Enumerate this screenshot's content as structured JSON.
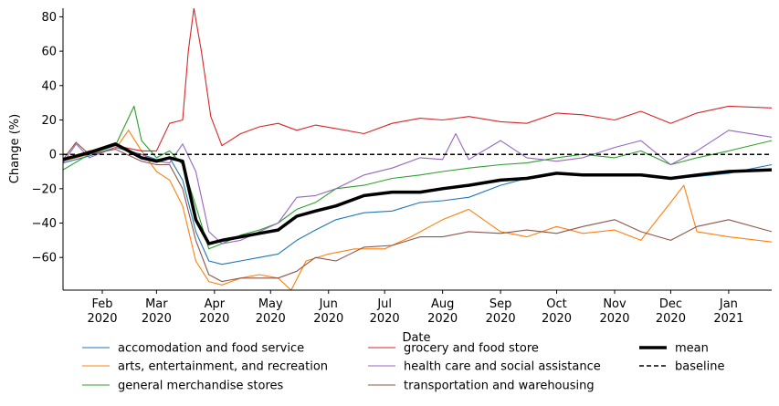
{
  "chart_data": {
    "type": "line",
    "xlabel": "Date",
    "ylabel": "Change (%)",
    "x_range": [
      "2020-01-11",
      "2021-01-24"
    ],
    "ylim": [
      -79,
      85
    ],
    "y_ticks": [
      -60,
      -40,
      -20,
      0,
      20,
      40,
      60,
      80
    ],
    "x_ticks": [
      {
        "date": "2020-02-01",
        "line1": "Feb",
        "line2": "2020"
      },
      {
        "date": "2020-03-01",
        "line1": "Mar",
        "line2": "2020"
      },
      {
        "date": "2020-04-01",
        "line1": "Apr",
        "line2": "2020"
      },
      {
        "date": "2020-05-01",
        "line1": "May",
        "line2": "2020"
      },
      {
        "date": "2020-06-01",
        "line1": "Jun",
        "line2": "2020"
      },
      {
        "date": "2020-07-01",
        "line1": "Jul",
        "line2": "2020"
      },
      {
        "date": "2020-08-01",
        "line1": "Aug",
        "line2": "2020"
      },
      {
        "date": "2020-09-01",
        "line1": "Sep",
        "line2": "2020"
      },
      {
        "date": "2020-10-01",
        "line1": "Oct",
        "line2": "2020"
      },
      {
        "date": "2020-11-01",
        "line1": "Nov",
        "line2": "2020"
      },
      {
        "date": "2020-12-01",
        "line1": "Dec",
        "line2": "2020"
      },
      {
        "date": "2021-01-01",
        "line1": "Jan",
        "line2": "2021"
      }
    ],
    "grid": false,
    "legend_placement": "bottom, outside plot",
    "series": [
      {
        "name": "accomodation and food service",
        "color": "#1f77b4",
        "style": "solid",
        "points": [
          [
            "2020-01-11",
            -5
          ],
          [
            "2020-01-25",
            -1
          ],
          [
            "2020-02-08",
            4
          ],
          [
            "2020-02-22",
            0
          ],
          [
            "2020-03-01",
            -3
          ],
          [
            "2020-03-08",
            -2
          ],
          [
            "2020-03-15",
            -15
          ],
          [
            "2020-03-22",
            -45
          ],
          [
            "2020-03-29",
            -62
          ],
          [
            "2020-04-05",
            -64
          ],
          [
            "2020-04-15",
            -62
          ],
          [
            "2020-04-25",
            -60
          ],
          [
            "2020-05-05",
            -58
          ],
          [
            "2020-05-15",
            -50
          ],
          [
            "2020-05-25",
            -44
          ],
          [
            "2020-06-05",
            -38
          ],
          [
            "2020-06-20",
            -34
          ],
          [
            "2020-07-05",
            -33
          ],
          [
            "2020-07-20",
            -28
          ],
          [
            "2020-08-01",
            -27
          ],
          [
            "2020-08-15",
            -25
          ],
          [
            "2020-09-01",
            -18
          ],
          [
            "2020-09-15",
            -14
          ],
          [
            "2020-10-01",
            -11
          ],
          [
            "2020-10-15",
            -12
          ],
          [
            "2020-11-01",
            -12
          ],
          [
            "2020-11-15",
            -12
          ],
          [
            "2020-12-01",
            -14
          ],
          [
            "2020-12-15",
            -13
          ],
          [
            "2021-01-01",
            -11
          ],
          [
            "2021-01-24",
            -6
          ]
        ]
      },
      {
        "name": "arts, entertainment, and recreation",
        "color": "#ff7f0e",
        "style": "solid",
        "points": [
          [
            "2020-01-11",
            -4
          ],
          [
            "2020-01-25",
            0
          ],
          [
            "2020-02-08",
            3
          ],
          [
            "2020-02-15",
            14
          ],
          [
            "2020-02-22",
            2
          ],
          [
            "2020-03-01",
            -10
          ],
          [
            "2020-03-08",
            -15
          ],
          [
            "2020-03-15",
            -30
          ],
          [
            "2020-03-22",
            -62
          ],
          [
            "2020-03-29",
            -74
          ],
          [
            "2020-04-05",
            -76
          ],
          [
            "2020-04-15",
            -72
          ],
          [
            "2020-04-25",
            -70
          ],
          [
            "2020-05-05",
            -72
          ],
          [
            "2020-05-12",
            -79
          ],
          [
            "2020-05-20",
            -62
          ],
          [
            "2020-06-01",
            -58
          ],
          [
            "2020-06-15",
            -55
          ],
          [
            "2020-07-01",
            -55
          ],
          [
            "2020-07-15",
            -48
          ],
          [
            "2020-08-01",
            -38
          ],
          [
            "2020-08-15",
            -32
          ],
          [
            "2020-09-01",
            -45
          ],
          [
            "2020-09-15",
            -48
          ],
          [
            "2020-10-01",
            -42
          ],
          [
            "2020-10-15",
            -46
          ],
          [
            "2020-11-01",
            -44
          ],
          [
            "2020-11-15",
            -50
          ],
          [
            "2020-12-01",
            -28
          ],
          [
            "2020-12-08",
            -18
          ],
          [
            "2020-12-15",
            -45
          ],
          [
            "2021-01-01",
            -48
          ],
          [
            "2021-01-24",
            -51
          ]
        ]
      },
      {
        "name": "general merchandise stores",
        "color": "#2ca02c",
        "style": "solid",
        "points": [
          [
            "2020-01-11",
            -9
          ],
          [
            "2020-01-25",
            0
          ],
          [
            "2020-02-08",
            5
          ],
          [
            "2020-02-18",
            28
          ],
          [
            "2020-02-22",
            8
          ],
          [
            "2020-03-01",
            -2
          ],
          [
            "2020-03-08",
            2
          ],
          [
            "2020-03-15",
            -6
          ],
          [
            "2020-03-22",
            -30
          ],
          [
            "2020-03-29",
            -55
          ],
          [
            "2020-04-05",
            -52
          ],
          [
            "2020-04-15",
            -47
          ],
          [
            "2020-04-25",
            -44
          ],
          [
            "2020-05-05",
            -40
          ],
          [
            "2020-05-15",
            -32
          ],
          [
            "2020-05-25",
            -28
          ],
          [
            "2020-06-05",
            -20
          ],
          [
            "2020-06-20",
            -18
          ],
          [
            "2020-07-05",
            -14
          ],
          [
            "2020-07-20",
            -12
          ],
          [
            "2020-08-01",
            -10
          ],
          [
            "2020-08-15",
            -8
          ],
          [
            "2020-09-01",
            -6
          ],
          [
            "2020-09-15",
            -5
          ],
          [
            "2020-10-01",
            -2
          ],
          [
            "2020-10-15",
            0
          ],
          [
            "2020-11-01",
            -2
          ],
          [
            "2020-11-15",
            2
          ],
          [
            "2020-12-01",
            -6
          ],
          [
            "2020-12-15",
            -2
          ],
          [
            "2021-01-01",
            2
          ],
          [
            "2021-01-24",
            8
          ]
        ]
      },
      {
        "name": "grocery and food store",
        "color": "#d62728",
        "style": "solid",
        "points": [
          [
            "2020-01-11",
            -3
          ],
          [
            "2020-01-25",
            2
          ],
          [
            "2020-02-08",
            5
          ],
          [
            "2020-02-22",
            2
          ],
          [
            "2020-03-01",
            2
          ],
          [
            "2020-03-08",
            18
          ],
          [
            "2020-03-15",
            20
          ],
          [
            "2020-03-18",
            60
          ],
          [
            "2020-03-21",
            85
          ],
          [
            "2020-03-25",
            60
          ],
          [
            "2020-03-30",
            22
          ],
          [
            "2020-04-05",
            5
          ],
          [
            "2020-04-15",
            12
          ],
          [
            "2020-04-25",
            16
          ],
          [
            "2020-05-05",
            18
          ],
          [
            "2020-05-15",
            14
          ],
          [
            "2020-05-25",
            17
          ],
          [
            "2020-06-05",
            15
          ],
          [
            "2020-06-20",
            12
          ],
          [
            "2020-07-05",
            18
          ],
          [
            "2020-07-20",
            21
          ],
          [
            "2020-08-01",
            20
          ],
          [
            "2020-08-15",
            22
          ],
          [
            "2020-09-01",
            19
          ],
          [
            "2020-09-15",
            18
          ],
          [
            "2020-10-01",
            24
          ],
          [
            "2020-10-15",
            23
          ],
          [
            "2020-11-01",
            20
          ],
          [
            "2020-11-15",
            25
          ],
          [
            "2020-12-01",
            18
          ],
          [
            "2020-12-15",
            24
          ],
          [
            "2021-01-01",
            28
          ],
          [
            "2021-01-24",
            27
          ]
        ]
      },
      {
        "name": "health care and social assistance",
        "color": "#9467bd",
        "style": "solid",
        "points": [
          [
            "2020-01-11",
            -5
          ],
          [
            "2020-01-18",
            6
          ],
          [
            "2020-01-25",
            -2
          ],
          [
            "2020-02-08",
            4
          ],
          [
            "2020-02-22",
            0
          ],
          [
            "2020-03-01",
            -4
          ],
          [
            "2020-03-08",
            -5
          ],
          [
            "2020-03-15",
            6
          ],
          [
            "2020-03-22",
            -10
          ],
          [
            "2020-03-29",
            -45
          ],
          [
            "2020-04-05",
            -52
          ],
          [
            "2020-04-15",
            -50
          ],
          [
            "2020-04-25",
            -45
          ],
          [
            "2020-05-05",
            -40
          ],
          [
            "2020-05-15",
            -25
          ],
          [
            "2020-05-25",
            -24
          ],
          [
            "2020-06-05",
            -20
          ],
          [
            "2020-06-20",
            -12
          ],
          [
            "2020-07-05",
            -8
          ],
          [
            "2020-07-20",
            -2
          ],
          [
            "2020-08-01",
            -3
          ],
          [
            "2020-08-08",
            12
          ],
          [
            "2020-08-15",
            -3
          ],
          [
            "2020-09-01",
            8
          ],
          [
            "2020-09-15",
            -2
          ],
          [
            "2020-10-01",
            -4
          ],
          [
            "2020-10-15",
            -2
          ],
          [
            "2020-11-01",
            4
          ],
          [
            "2020-11-15",
            8
          ],
          [
            "2020-12-01",
            -6
          ],
          [
            "2020-12-15",
            2
          ],
          [
            "2021-01-01",
            14
          ],
          [
            "2021-01-24",
            10
          ]
        ]
      },
      {
        "name": "transportation and warehousing",
        "color": "#8c564b",
        "style": "solid",
        "points": [
          [
            "2020-01-11",
            -3
          ],
          [
            "2020-01-18",
            7
          ],
          [
            "2020-01-25",
            0
          ],
          [
            "2020-02-08",
            3
          ],
          [
            "2020-02-22",
            -4
          ],
          [
            "2020-03-01",
            -6
          ],
          [
            "2020-03-08",
            -6
          ],
          [
            "2020-03-15",
            -20
          ],
          [
            "2020-03-22",
            -50
          ],
          [
            "2020-03-29",
            -70
          ],
          [
            "2020-04-05",
            -74
          ],
          [
            "2020-04-15",
            -72
          ],
          [
            "2020-04-25",
            -72
          ],
          [
            "2020-05-05",
            -72
          ],
          [
            "2020-05-15",
            -68
          ],
          [
            "2020-05-25",
            -60
          ],
          [
            "2020-06-05",
            -62
          ],
          [
            "2020-06-20",
            -54
          ],
          [
            "2020-07-05",
            -53
          ],
          [
            "2020-07-20",
            -48
          ],
          [
            "2020-08-01",
            -48
          ],
          [
            "2020-08-15",
            -45
          ],
          [
            "2020-09-01",
            -46
          ],
          [
            "2020-09-15",
            -44
          ],
          [
            "2020-10-01",
            -46
          ],
          [
            "2020-10-15",
            -42
          ],
          [
            "2020-11-01",
            -38
          ],
          [
            "2020-11-15",
            -45
          ],
          [
            "2020-12-01",
            -50
          ],
          [
            "2020-12-15",
            -42
          ],
          [
            "2021-01-01",
            -38
          ],
          [
            "2021-01-24",
            -45
          ]
        ]
      },
      {
        "name": "mean",
        "color": "#000000",
        "style": "thick",
        "points": [
          [
            "2020-01-11",
            -3
          ],
          [
            "2020-01-25",
            1
          ],
          [
            "2020-02-08",
            6
          ],
          [
            "2020-02-22",
            -2
          ],
          [
            "2020-03-01",
            -4
          ],
          [
            "2020-03-08",
            -2
          ],
          [
            "2020-03-15",
            -4
          ],
          [
            "2020-03-22",
            -38
          ],
          [
            "2020-03-29",
            -52
          ],
          [
            "2020-04-05",
            -50
          ],
          [
            "2020-04-15",
            -48
          ],
          [
            "2020-04-25",
            -46
          ],
          [
            "2020-05-05",
            -44
          ],
          [
            "2020-05-15",
            -36
          ],
          [
            "2020-05-25",
            -33
          ],
          [
            "2020-06-05",
            -30
          ],
          [
            "2020-06-20",
            -24
          ],
          [
            "2020-07-05",
            -22
          ],
          [
            "2020-07-20",
            -22
          ],
          [
            "2020-08-01",
            -20
          ],
          [
            "2020-08-15",
            -18
          ],
          [
            "2020-09-01",
            -15
          ],
          [
            "2020-09-15",
            -14
          ],
          [
            "2020-10-01",
            -11
          ],
          [
            "2020-10-15",
            -12
          ],
          [
            "2020-11-01",
            -12
          ],
          [
            "2020-11-15",
            -12
          ],
          [
            "2020-12-01",
            -14
          ],
          [
            "2020-12-15",
            -12
          ],
          [
            "2021-01-01",
            -10
          ],
          [
            "2021-01-24",
            -9
          ]
        ]
      },
      {
        "name": "baseline",
        "color": "#000000",
        "style": "dashed",
        "points": [
          [
            "2020-01-11",
            0
          ],
          [
            "2021-01-24",
            0
          ]
        ]
      }
    ]
  }
}
